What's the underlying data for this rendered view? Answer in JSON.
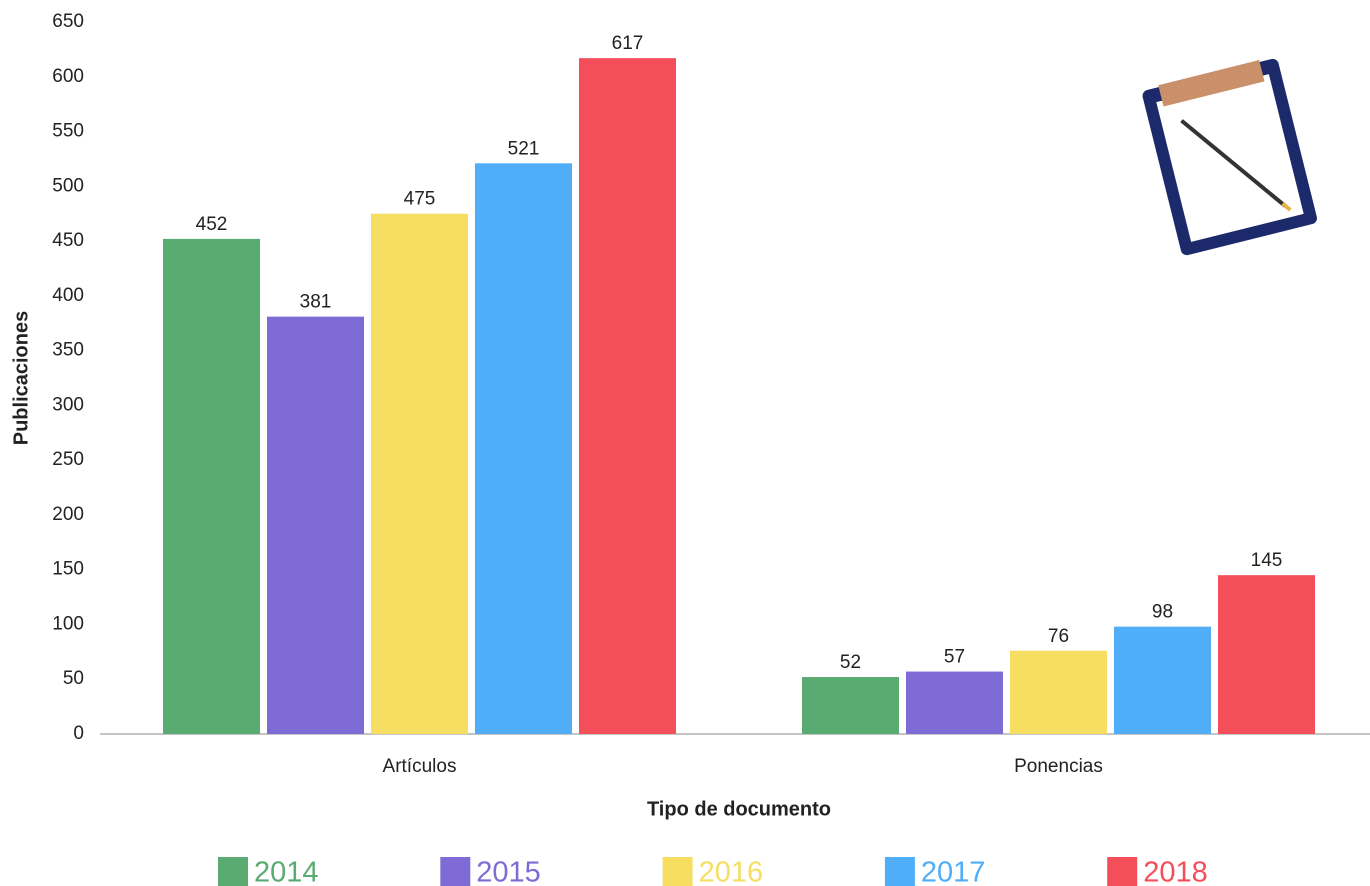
{
  "chart_data": {
    "type": "bar",
    "x_label": "Tipo de documento",
    "y_label": "Publicaciones",
    "categories": [
      "Artículos",
      "Ponencias"
    ],
    "series": [
      {
        "name": "2014",
        "color": "#5aab72",
        "values": [
          452,
          52
        ]
      },
      {
        "name": "2015",
        "color": "#7f6bd6",
        "values": [
          381,
          57
        ]
      },
      {
        "name": "2016",
        "color": "#f5de62",
        "values": [
          475,
          76
        ]
      },
      {
        "name": "2017",
        "color": "#50adf7",
        "values": [
          521,
          98
        ]
      },
      {
        "name": "2018",
        "color": "#f44e5a",
        "values": [
          617,
          145
        ]
      }
    ],
    "ylim": [
      0,
      650
    ],
    "yticks": [
      0,
      50,
      100,
      150,
      200,
      250,
      300,
      350,
      400,
      450,
      500,
      550,
      600,
      650
    ],
    "grid": false,
    "legend": "bottom"
  }
}
